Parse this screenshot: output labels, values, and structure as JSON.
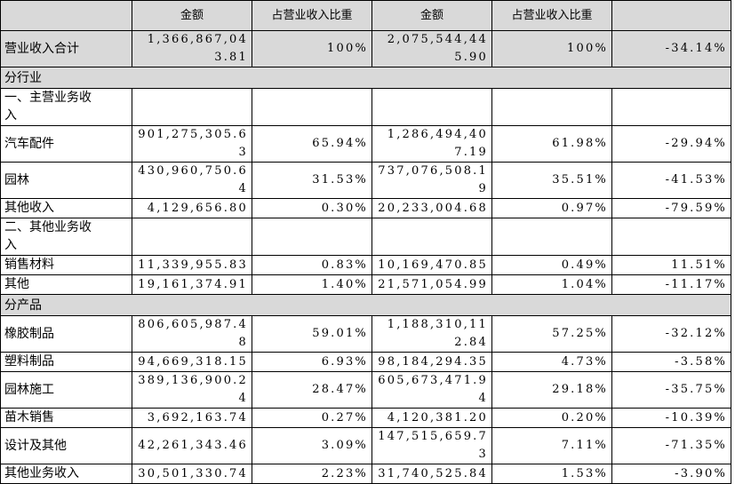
{
  "table": {
    "header": [
      "金额",
      "占营业收入比重",
      "金额",
      "占营业收入比重"
    ],
    "rows": [
      {
        "label": "营业收入合计",
        "cells": [
          "1,366,867,043.81",
          "100%",
          "2,075,544,445.90",
          "100%",
          "-34.14%"
        ],
        "shaded": true
      },
      {
        "section": "分行业"
      },
      {
        "label": "一、主营业务收入"
      },
      {
        "label": "汽车配件",
        "cells": [
          "901,275,305.63",
          "65.94%",
          "1,286,494,407.19",
          "61.98%",
          "-29.94%"
        ]
      },
      {
        "label": "园林",
        "cells": [
          "430,960,750.64",
          "31.53%",
          "737,076,508.19",
          "35.51%",
          "-41.53%"
        ]
      },
      {
        "label": "其他收入",
        "cells": [
          "4,129,656.80",
          "0.30%",
          "20,233,004.68",
          "0.97%",
          "-79.59%"
        ]
      },
      {
        "label": "二、其他业务收入"
      },
      {
        "label": "销售材料",
        "cells": [
          "11,339,955.83",
          "0.83%",
          "10,169,470.85",
          "0.49%",
          "11.51%"
        ]
      },
      {
        "label": "其他",
        "cells": [
          "19,161,374.91",
          "1.40%",
          "21,571,054.99",
          "1.04%",
          "-11.17%"
        ]
      },
      {
        "section": "分产品"
      },
      {
        "label": "橡胶制品",
        "cells": [
          "806,605,987.48",
          "59.01%",
          "1,188,310,112.84",
          "57.25%",
          "-32.12%"
        ]
      },
      {
        "label": "塑料制品",
        "cells": [
          "94,669,318.15",
          "6.93%",
          "98,184,294.35",
          "4.73%",
          "-3.58%"
        ]
      },
      {
        "label": "园林施工",
        "cells": [
          "389,136,900.24",
          "28.47%",
          "605,673,471.94",
          "29.18%",
          "-35.75%"
        ]
      },
      {
        "label": "苗木销售",
        "cells": [
          "3,692,163.74",
          "0.27%",
          "4,120,381.20",
          "0.20%",
          "-10.39%"
        ]
      },
      {
        "label": "设计及其他",
        "cells": [
          "42,261,343.46",
          "3.09%",
          "147,515,659.73",
          "7.11%",
          "-71.35%"
        ]
      },
      {
        "label": "其他业务收入",
        "cells": [
          "30,501,330.74",
          "2.23%",
          "31,740,525.84",
          "1.53%",
          "-3.90%"
        ]
      }
    ]
  }
}
